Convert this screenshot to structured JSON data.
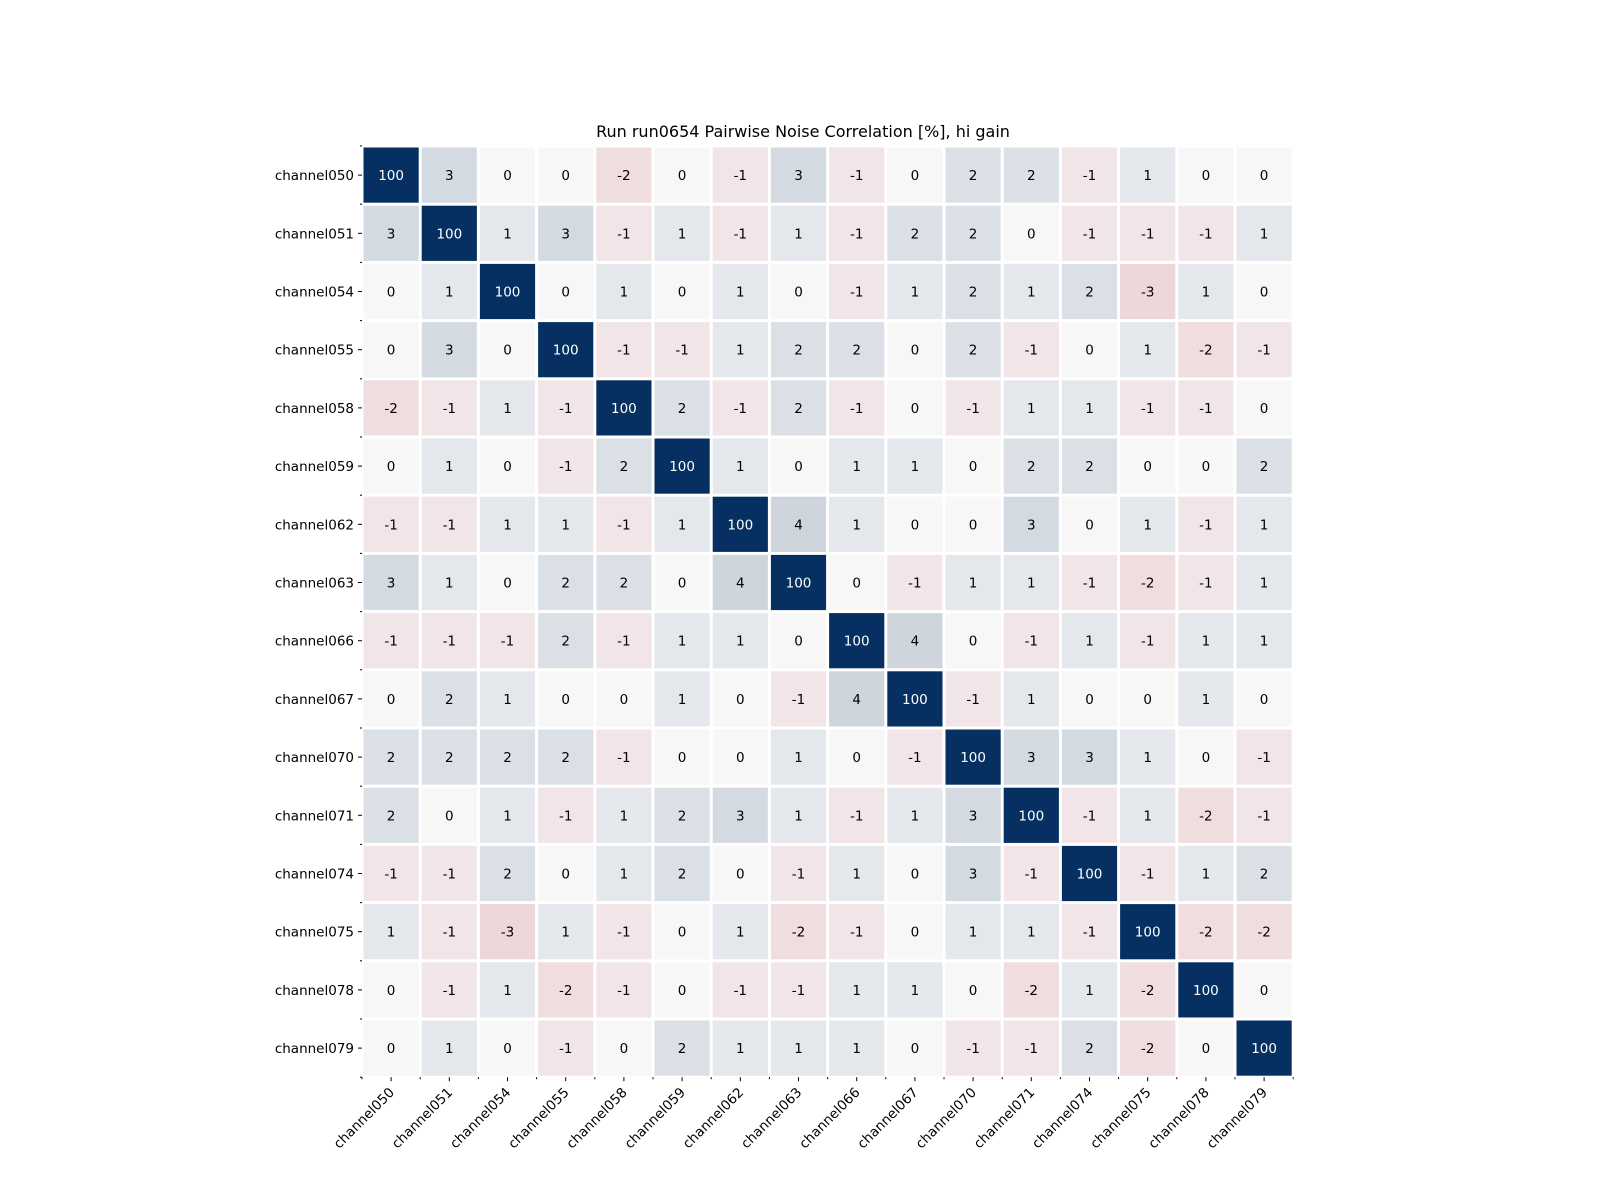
{
  "chart_data": {
    "type": "heatmap",
    "title": "Run run0654 Pairwise Noise Correlation [%], hi gain",
    "xlabel": "",
    "ylabel": "",
    "x_labels": [
      "channel050",
      "channel051",
      "channel054",
      "channel055",
      "channel058",
      "channel059",
      "channel062",
      "channel063",
      "channel066",
      "channel067",
      "channel070",
      "channel071",
      "channel074",
      "channel075",
      "channel078",
      "channel079"
    ],
    "y_labels": [
      "channel050",
      "channel051",
      "channel054",
      "channel055",
      "channel058",
      "channel059",
      "channel062",
      "channel063",
      "channel066",
      "channel067",
      "channel070",
      "channel071",
      "channel074",
      "channel075",
      "channel078",
      "channel079"
    ],
    "values": [
      [
        100,
        3,
        0,
        0,
        -2,
        0,
        -1,
        3,
        -1,
        0,
        2,
        2,
        -1,
        1,
        0,
        0
      ],
      [
        3,
        100,
        1,
        3,
        -1,
        1,
        -1,
        1,
        -1,
        2,
        2,
        0,
        -1,
        -1,
        -1,
        1
      ],
      [
        0,
        1,
        100,
        0,
        1,
        0,
        1,
        0,
        -1,
        1,
        2,
        1,
        2,
        -3,
        1,
        0
      ],
      [
        0,
        3,
        0,
        100,
        -1,
        -1,
        1,
        2,
        2,
        0,
        2,
        -1,
        0,
        1,
        -2,
        -1
      ],
      [
        -2,
        -1,
        1,
        -1,
        100,
        2,
        -1,
        2,
        -1,
        0,
        -1,
        1,
        1,
        -1,
        -1,
        0
      ],
      [
        0,
        1,
        0,
        -1,
        2,
        100,
        1,
        0,
        1,
        1,
        0,
        2,
        2,
        0,
        0,
        2
      ],
      [
        -1,
        -1,
        1,
        1,
        -1,
        1,
        100,
        4,
        1,
        0,
        0,
        3,
        0,
        1,
        -1,
        1
      ],
      [
        3,
        1,
        0,
        2,
        2,
        0,
        4,
        100,
        0,
        -1,
        1,
        1,
        -1,
        -2,
        -1,
        1
      ],
      [
        -1,
        -1,
        -1,
        2,
        -1,
        1,
        1,
        0,
        100,
        4,
        0,
        -1,
        1,
        -1,
        1,
        1
      ],
      [
        0,
        2,
        1,
        0,
        0,
        1,
        0,
        -1,
        4,
        100,
        -1,
        1,
        0,
        0,
        1,
        0
      ],
      [
        2,
        2,
        2,
        2,
        -1,
        0,
        0,
        1,
        0,
        -1,
        100,
        3,
        3,
        1,
        0,
        -1
      ],
      [
        2,
        0,
        1,
        -1,
        1,
        2,
        3,
        1,
        -1,
        1,
        3,
        100,
        -1,
        1,
        -2,
        -1
      ],
      [
        -1,
        -1,
        2,
        0,
        1,
        2,
        0,
        -1,
        1,
        0,
        3,
        -1,
        100,
        -1,
        1,
        2
      ],
      [
        1,
        -1,
        -3,
        1,
        -1,
        0,
        1,
        -2,
        -1,
        0,
        1,
        1,
        -1,
        100,
        -2,
        -2
      ],
      [
        0,
        -1,
        1,
        -2,
        -1,
        0,
        -1,
        -1,
        1,
        1,
        0,
        -2,
        1,
        -2,
        100,
        0
      ],
      [
        0,
        1,
        0,
        -1,
        0,
        2,
        1,
        1,
        1,
        0,
        -1,
        -1,
        2,
        -2,
        0,
        100
      ]
    ],
    "colormap": "RdBu_r",
    "vmin": -100,
    "vmax": 100,
    "colors": {
      "high": "#053061",
      "neutral": "#f7f7f7",
      "low": "#67001f",
      "cell_border": "#ffffff",
      "text_dark": "#000000",
      "text_light": "#ffffff"
    },
    "colorbar": false,
    "grid": false
  }
}
